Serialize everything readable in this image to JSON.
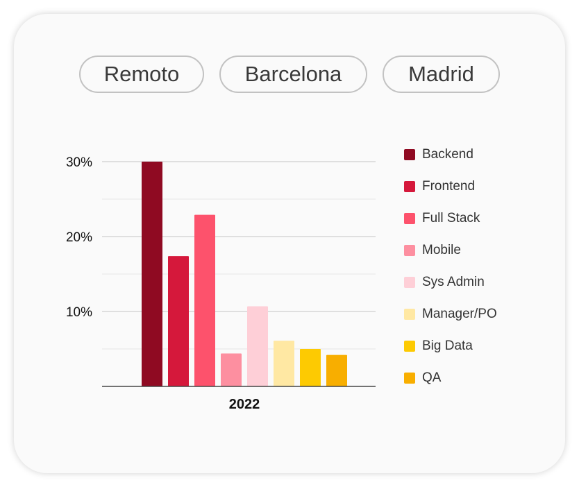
{
  "filters": [
    "Remoto",
    "Barcelona",
    "Madrid"
  ],
  "chart_data": {
    "type": "bar",
    "categories": [
      "2022"
    ],
    "series": [
      {
        "name": "Backend",
        "values": [
          30
        ],
        "color": "#8f0a22"
      },
      {
        "name": "Frontend",
        "values": [
          17.4
        ],
        "color": "#d5183b"
      },
      {
        "name": "Full Stack",
        "values": [
          22.9
        ],
        "color": "#fd526c"
      },
      {
        "name": "Mobile",
        "values": [
          4.4
        ],
        "color": "#fd8fa0"
      },
      {
        "name": "Sys Admin",
        "values": [
          10.7
        ],
        "color": "#fecfd7"
      },
      {
        "name": "Manager/PO",
        "values": [
          6.1
        ],
        "color": "#ffe8a3"
      },
      {
        "name": "Big Data",
        "values": [
          5.0
        ],
        "color": "#fdca02"
      },
      {
        "name": "QA",
        "values": [
          4.2
        ],
        "color": "#f8ae00"
      }
    ],
    "yticks": [
      "10%",
      "20%",
      "30%"
    ],
    "ylim": [
      0,
      30
    ],
    "legend_position": "right",
    "grid": true
  }
}
